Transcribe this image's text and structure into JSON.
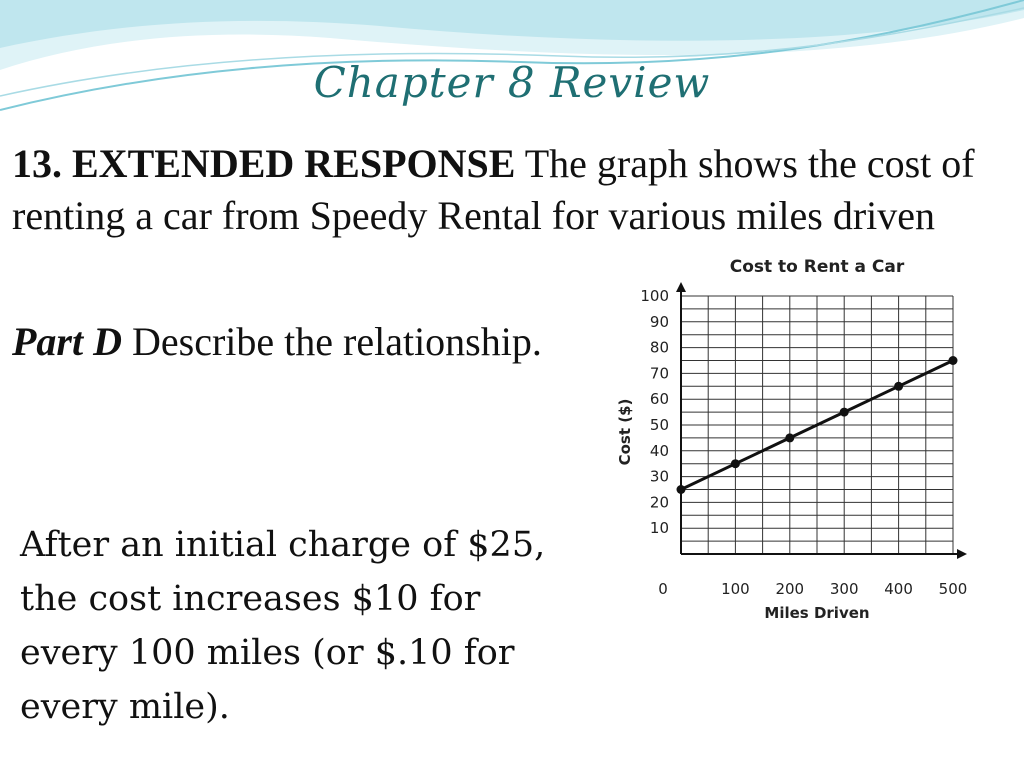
{
  "slide": {
    "title": "Chapter 8 Review",
    "problem_lead": "13. EXTENDED RESPONSE",
    "problem_text": " The graph shows the cost of renting a car from Speedy Rental for various miles driven",
    "part_label": "Part D",
    "part_text": " Describe the relationship.",
    "answer": "After an initial charge of $25, the cost increases $10 for every 100 miles (or $.10 for every mile)."
  },
  "colors": {
    "title": "#1f6f73",
    "wave_light": "#bfe6ee",
    "wave_mid": "#7fcad8",
    "line": "#111111"
  },
  "chart_data": {
    "type": "line",
    "title": "Cost to Rent a Car",
    "xlabel": "Miles Driven",
    "ylabel": "Cost ($)",
    "xlim": [
      0,
      500
    ],
    "ylim": [
      0,
      100
    ],
    "x_ticks": [
      0,
      100,
      200,
      300,
      400,
      500
    ],
    "y_ticks": [
      10,
      20,
      30,
      40,
      50,
      60,
      70,
      80,
      90,
      100
    ],
    "grid": true,
    "series": [
      {
        "x": [
          0,
          100,
          200,
          300,
          400,
          500
        ],
        "y": [
          25,
          35,
          45,
          55,
          65,
          75
        ]
      }
    ]
  }
}
